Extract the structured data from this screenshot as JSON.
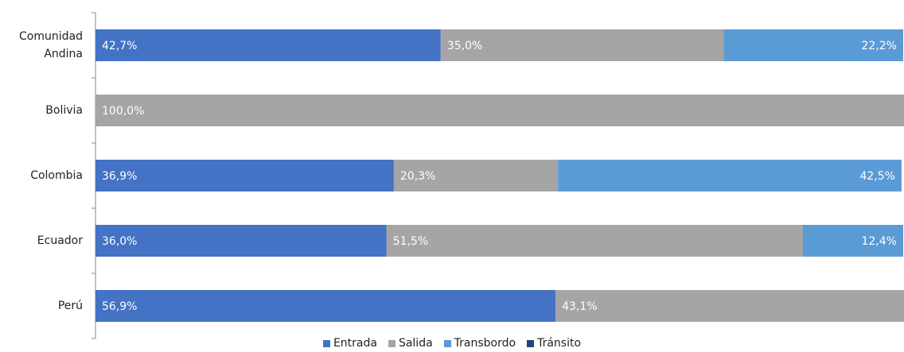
{
  "chart_data": {
    "type": "bar",
    "orientation": "horizontal",
    "stacked": true,
    "categories": [
      "Comunidad Andina",
      "Bolivia",
      "Colombia",
      "Ecuador",
      "Perú"
    ],
    "xlim": [
      0,
      100
    ],
    "series": [
      {
        "name": "Entrada",
        "color": "#4472c4",
        "values": [
          42.7,
          0,
          36.9,
          36.0,
          56.9
        ],
        "value_labels": [
          "42,7%",
          null,
          "36,9%",
          "36,0%",
          "56,9%"
        ]
      },
      {
        "name": "Salida",
        "color": "#a5a5a5",
        "values": [
          35.0,
          100,
          20.3,
          51.5,
          43.1
        ],
        "value_labels": [
          "35,0%",
          "100,0%",
          "20,3%",
          "51,5%",
          "43,1%"
        ]
      },
      {
        "name": "Transbordo",
        "color": "#5b9bd5",
        "values": [
          22.2,
          0,
          42.5,
          12.4,
          0
        ],
        "value_labels": [
          "22,2%",
          null,
          "42,5%",
          "12,4%",
          null
        ]
      },
      {
        "name": "Tránsito",
        "color": "#264478",
        "values": [
          0,
          0,
          0,
          0,
          0
        ],
        "value_labels": [
          null,
          null,
          null,
          null,
          null
        ]
      }
    ],
    "legend": "bottom"
  }
}
